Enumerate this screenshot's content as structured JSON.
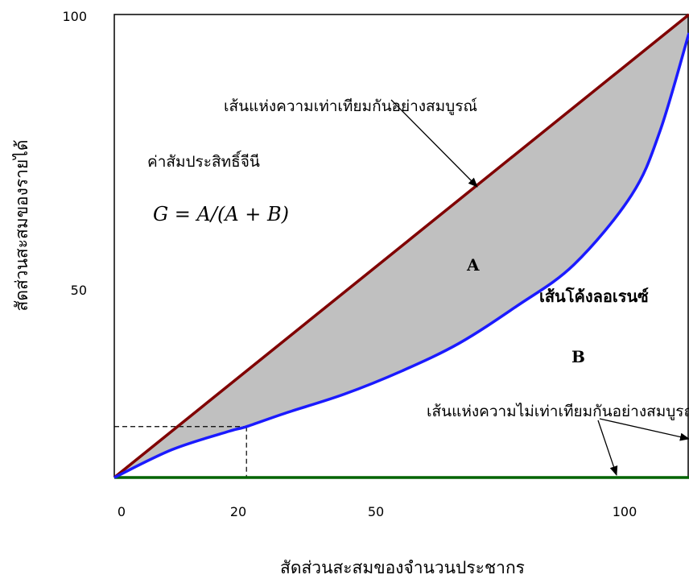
{
  "chart_data": {
    "type": "area",
    "y_ticks": [
      "100",
      "50"
    ],
    "x_ticks": [
      "0",
      "20",
      "50",
      "100"
    ],
    "xlabel": "สัดส่วนสะสมของจำนวนประชากร",
    "ylabel": "สัดส่วนสะสมของรายได้",
    "xlim": [
      0,
      100
    ],
    "ylim": [
      0,
      100
    ],
    "series": [
      {
        "name": "เส้นแห่งความเท่าเทียมกันอย่างสมบูรณ์",
        "color": "#800000",
        "x": [
          0,
          100
        ],
        "y": [
          0,
          100
        ]
      },
      {
        "name": "เส้นโค้งลอเรนซ์",
        "color": "#1a1aff",
        "x": [
          0,
          10,
          20,
          23,
          30,
          40,
          50,
          60,
          70,
          80,
          90,
          95,
          100
        ],
        "y": [
          0,
          6,
          10,
          11,
          14,
          18,
          23,
          29,
          37,
          46,
          61,
          75,
          96
        ]
      },
      {
        "name": "เส้นแห่งความไม่เท่าเทียมกันอย่างสมบูรณ์",
        "color": "#006400",
        "x": [
          0,
          100
        ],
        "y": [
          0,
          0
        ]
      }
    ],
    "reference_point": {
      "x": 23,
      "y": 11
    },
    "fill_between": {
      "upper": "เส้นแห่งความเท่าเทียมกันอย่างสมบูรณ์",
      "lower": "เส้นโค้งลอเรนซ์",
      "color": "#c0c0c0",
      "label": "A"
    },
    "annotations": {
      "equality_line_label": "เส้นแห่งความเท่าเทียมกันอย่างสมบูรณ์",
      "gini_title": "ค่าสัมประสิทธิ์จีนี",
      "gini_formula": "G = A/(A + B)",
      "area_a": "A",
      "area_b": "B",
      "lorenz_label": "เส้นโค้งลอเรนซ์",
      "inequality_line_label": "เส้นแห่งความไม่เท่าเทียมกันอย่างสมบูรณ์"
    }
  }
}
